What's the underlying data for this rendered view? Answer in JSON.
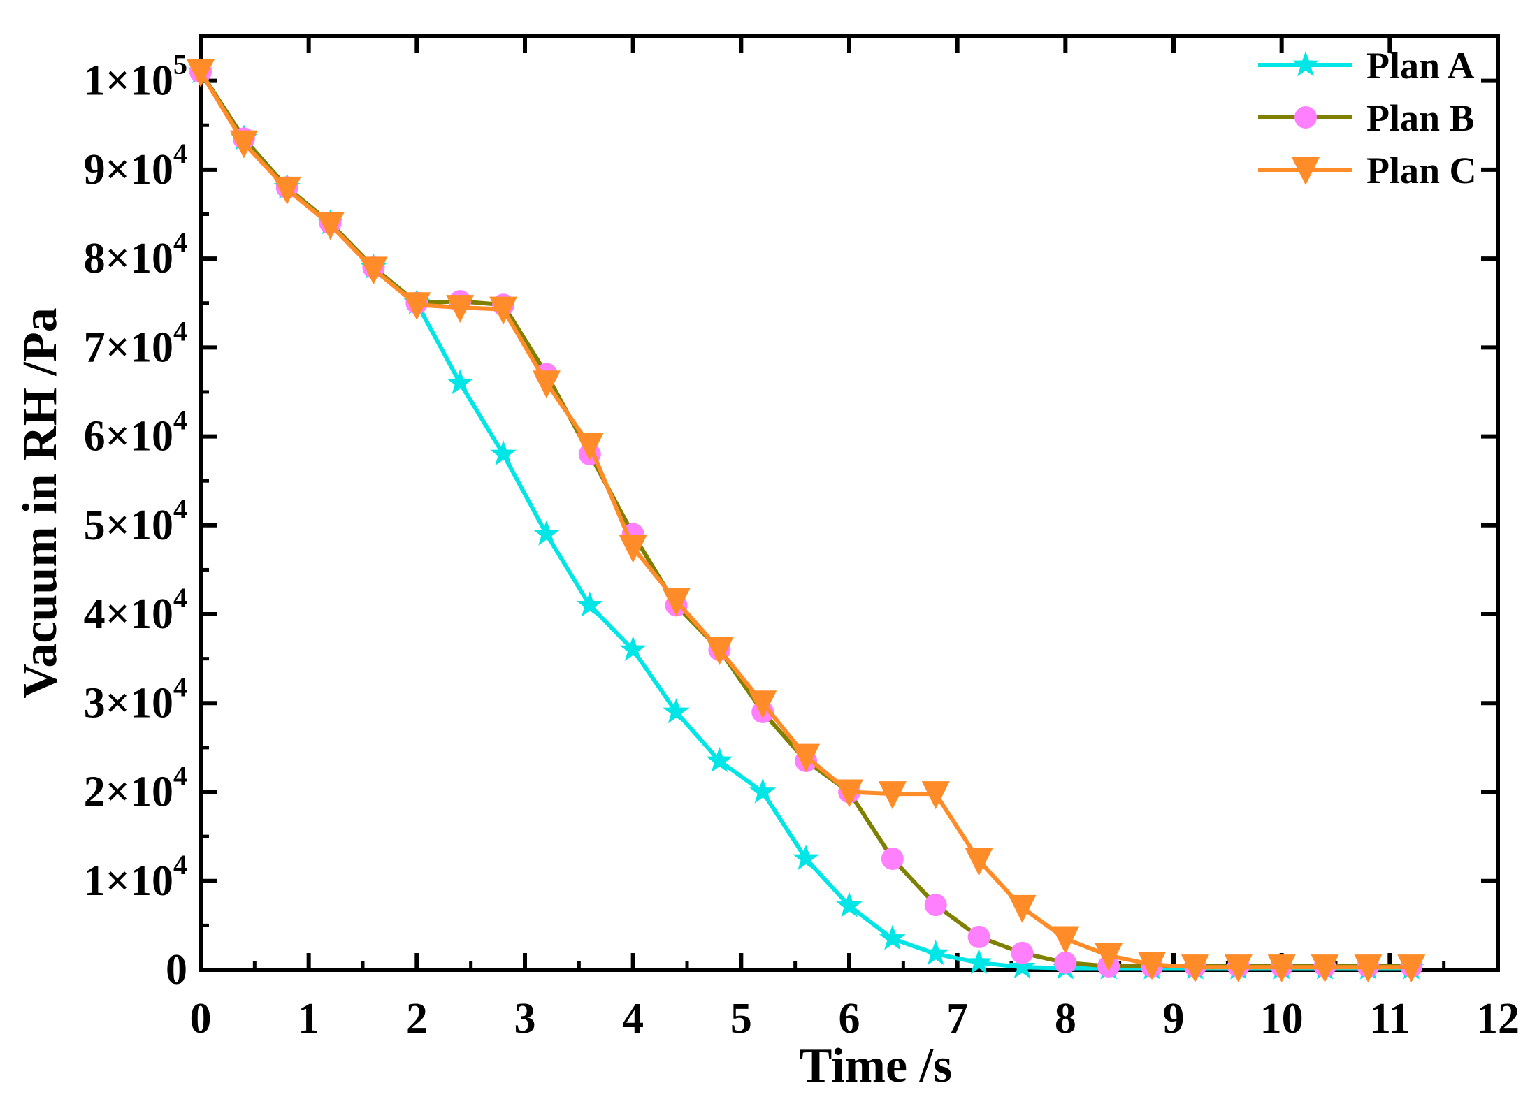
{
  "chart_data": {
    "type": "line",
    "title": "",
    "xlabel": "Time /s",
    "ylabel": "Vacuum in RH /Pa",
    "xlim": [
      0,
      12
    ],
    "ylim": [
      0,
      105000
    ],
    "x_ticks": [
      0,
      1,
      2,
      3,
      4,
      5,
      6,
      7,
      8,
      9,
      10,
      11,
      12
    ],
    "x_tick_labels": [
      "0",
      "1",
      "2",
      "3",
      "4",
      "5",
      "6",
      "7",
      "8",
      "9",
      "10",
      "11",
      "12"
    ],
    "y_ticks": [
      0,
      10000,
      20000,
      30000,
      40000,
      50000,
      60000,
      70000,
      80000,
      90000,
      100000
    ],
    "y_tick_labels": [
      {
        "mantissa": "0",
        "exp": ""
      },
      {
        "mantissa": "1×10",
        "exp": "4"
      },
      {
        "mantissa": "2×10",
        "exp": "4"
      },
      {
        "mantissa": "3×10",
        "exp": "4"
      },
      {
        "mantissa": "4×10",
        "exp": "4"
      },
      {
        "mantissa": "5×10",
        "exp": "4"
      },
      {
        "mantissa": "6×10",
        "exp": "4"
      },
      {
        "mantissa": "7×10",
        "exp": "4"
      },
      {
        "mantissa": "8×10",
        "exp": "4"
      },
      {
        "mantissa": "9×10",
        "exp": "4"
      },
      {
        "mantissa": "1×10",
        "exp": "5"
      }
    ],
    "grid": false,
    "legend_position": "top-right",
    "x": [
      0,
      0.4,
      0.8,
      1.2,
      1.6,
      2.0,
      2.4,
      2.8,
      3.2,
      3.6,
      4.0,
      4.4,
      4.8,
      5.2,
      5.6,
      6.0,
      6.4,
      6.8,
      7.2,
      7.6,
      8.0,
      8.4,
      8.8,
      9.2,
      9.6,
      10.0,
      10.4,
      10.8,
      11.2
    ],
    "series": [
      {
        "name": "Plan A",
        "color": "#00e5e5",
        "marker": "star",
        "values": [
          101000,
          93500,
          88000,
          84000,
          79000,
          75000,
          66000,
          58000,
          49000,
          41000,
          36000,
          29000,
          23500,
          20000,
          12500,
          7200,
          3500,
          1800,
          800,
          300,
          200,
          200,
          200,
          200,
          200,
          200,
          200,
          200,
          200
        ]
      },
      {
        "name": "Plan B",
        "color": "#808000",
        "marker_color": "#ff80ff",
        "marker": "circle",
        "values": [
          101000,
          93500,
          88000,
          84000,
          79000,
          75000,
          75200,
          74800,
          67000,
          58000,
          49000,
          41000,
          36000,
          29000,
          23500,
          20000,
          12500,
          7300,
          3700,
          1900,
          800,
          400,
          400,
          400,
          400,
          400,
          400,
          400,
          400
        ]
      },
      {
        "name": "Plan C",
        "color": "#ff8c28",
        "marker": "triangle-down",
        "values": [
          101000,
          93000,
          87800,
          83800,
          78800,
          74800,
          74500,
          74300,
          66000,
          59000,
          47500,
          41500,
          36000,
          30000,
          24000,
          20000,
          19800,
          19800,
          12300,
          7000,
          3500,
          1600,
          600,
          300,
          300,
          300,
          300,
          300,
          300
        ]
      }
    ]
  }
}
